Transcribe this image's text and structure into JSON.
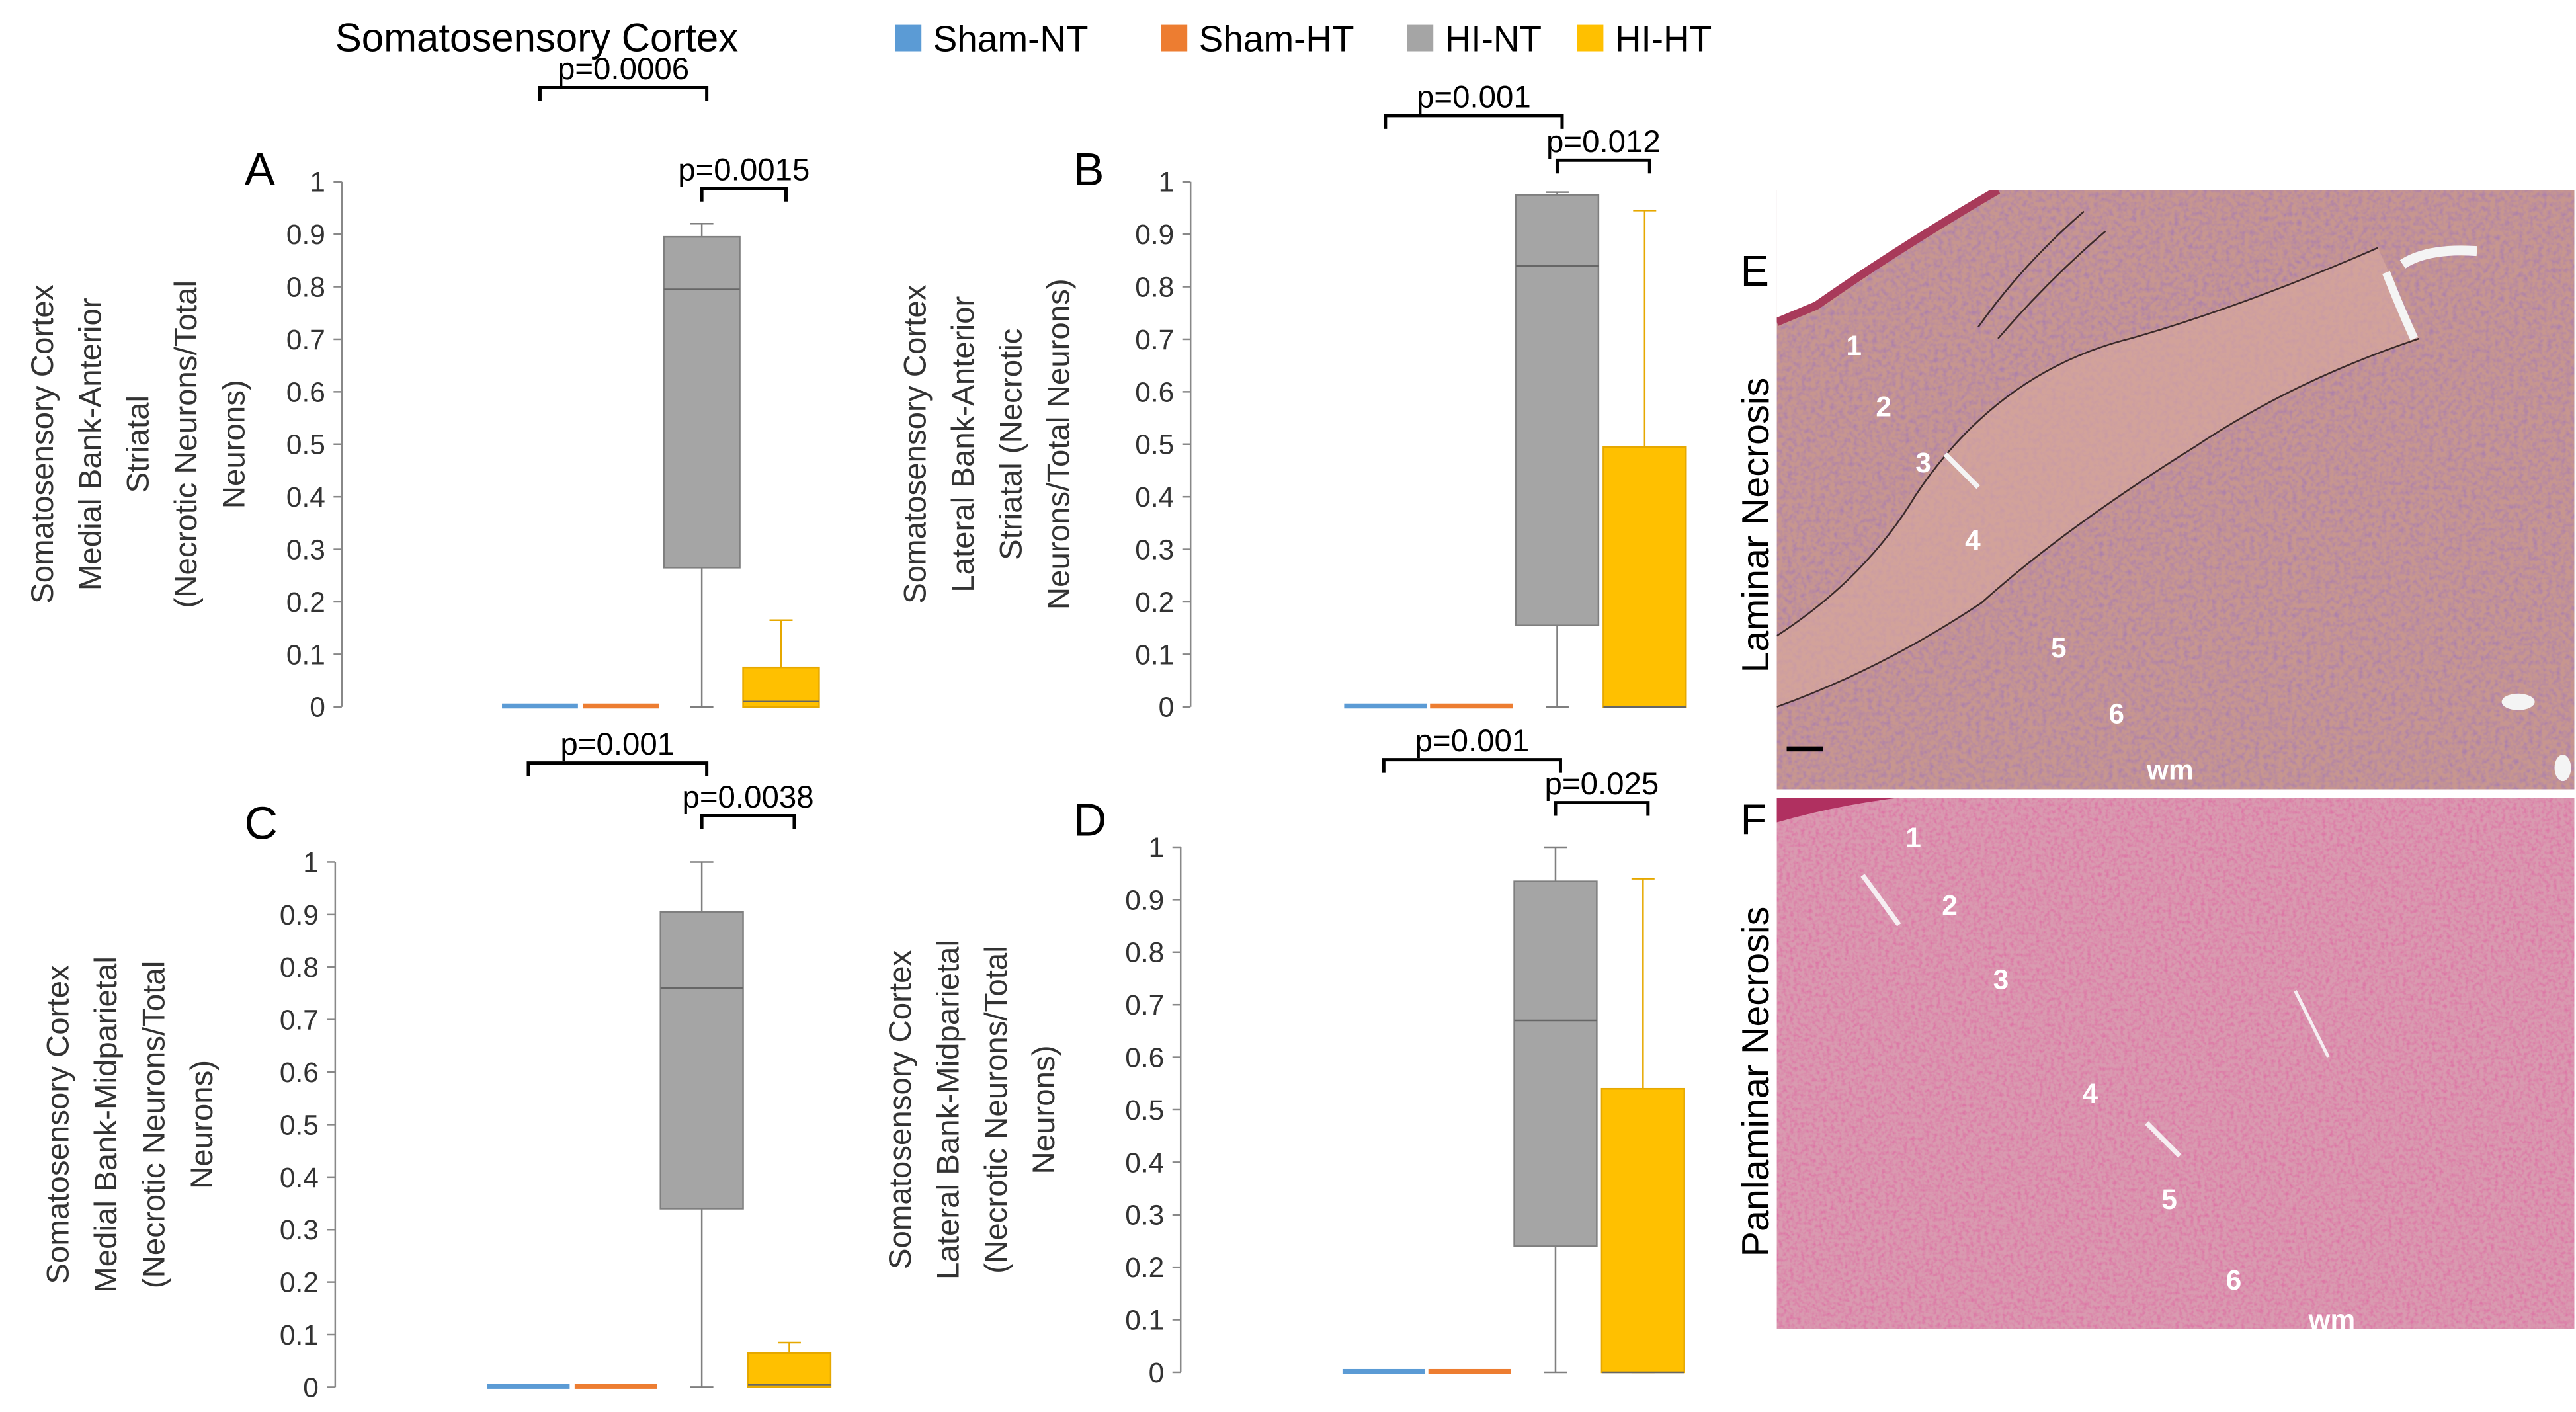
{
  "title": "Somatosensory Cortex",
  "legend": [
    {
      "label": "Sham-NT",
      "color": "#5B9BD5"
    },
    {
      "label": "Sham-HT",
      "color": "#ED7D31"
    },
    {
      "label": "HI-NT",
      "color": "#A5A5A5"
    },
    {
      "label": "HI-HT",
      "color": "#FFC000"
    }
  ],
  "colors": {
    "sham_nt": "#5B9BD5",
    "sham_ht": "#ED7D31",
    "hi_nt": "#A5A5A5",
    "hi_nt_edge": "#7F7F7F",
    "hi_ht": "#FFC000",
    "hi_ht_edge": "#E6A800"
  },
  "chart_data": [
    {
      "panel": "A",
      "type": "box",
      "ylabel": [
        "Somatosensory Cortex",
        "Medial Bank-Anterior",
        "Striatal",
        "(Necrotic Neurons/Total",
        "Neurons)"
      ],
      "ylim": [
        0,
        1
      ],
      "yticks": [
        "0",
        "0.1",
        "0.2",
        "0.3",
        "0.4",
        "0.5",
        "0.6",
        "0.7",
        "0.8",
        "0.9",
        "1"
      ],
      "groups": [
        {
          "name": "Sham-NT",
          "q1": 0,
          "median": 0,
          "q3": 0,
          "min": 0,
          "max": 0
        },
        {
          "name": "Sham-HT",
          "q1": 0,
          "median": 0,
          "q3": 0,
          "min": 0,
          "max": 0
        },
        {
          "name": "HI-NT",
          "q1": 0.265,
          "median": 0.795,
          "q3": 0.895,
          "min": 0,
          "max": 0.92
        },
        {
          "name": "HI-HT",
          "q1": 0.0,
          "median": 0.01,
          "q3": 0.075,
          "min": 0,
          "max": 0.165
        }
      ],
      "pvalues": [
        {
          "label": "p=0.0006",
          "from": "Sham-NT",
          "to": "HI-NT"
        },
        {
          "label": "p=0.0015",
          "from": "HI-NT",
          "to": "HI-HT"
        }
      ]
    },
    {
      "panel": "B",
      "type": "box",
      "ylabel": [
        "Somatosensory Cortex",
        "Lateral Bank-Anterior",
        "Striatal (Necrotic",
        "Neurons/Total Neurons)"
      ],
      "ylim": [
        0,
        1
      ],
      "yticks": [
        "0",
        "0.1",
        "0.2",
        "0.3",
        "0.4",
        "0.5",
        "0.6",
        "0.7",
        "0.8",
        "0.9",
        "1"
      ],
      "groups": [
        {
          "name": "Sham-NT",
          "q1": 0,
          "median": 0,
          "q3": 0,
          "min": 0,
          "max": 0
        },
        {
          "name": "Sham-HT",
          "q1": 0,
          "median": 0,
          "q3": 0,
          "min": 0,
          "max": 0
        },
        {
          "name": "HI-NT",
          "q1": 0.155,
          "median": 0.84,
          "q3": 0.975,
          "min": 0,
          "max": 0.98
        },
        {
          "name": "HI-HT",
          "q1": 0.0,
          "median": 0.0,
          "q3": 0.495,
          "min": 0,
          "max": 0.945
        }
      ],
      "pvalues": [
        {
          "label": "p=0.001",
          "from": "Sham-NT",
          "to": "HI-NT"
        },
        {
          "label": "p=0.012",
          "from": "HI-NT",
          "to": "HI-HT"
        }
      ]
    },
    {
      "panel": "C",
      "type": "box",
      "ylabel": [
        "Somatosensory Cortex",
        "Medial Bank-Midparietal",
        "(Necrotic Neurons/Total",
        "Neurons)"
      ],
      "ylim": [
        0,
        1
      ],
      "yticks": [
        "0",
        "0.1",
        "0.2",
        "0.3",
        "0.4",
        "0.5",
        "0.6",
        "0.7",
        "0.8",
        "0.9",
        "1"
      ],
      "groups": [
        {
          "name": "Sham-NT",
          "q1": 0,
          "median": 0,
          "q3": 0,
          "min": 0,
          "max": 0
        },
        {
          "name": "Sham-HT",
          "q1": 0,
          "median": 0,
          "q3": 0,
          "min": 0,
          "max": 0
        },
        {
          "name": "HI-NT",
          "q1": 0.34,
          "median": 0.76,
          "q3": 0.905,
          "min": 0,
          "max": 1.0
        },
        {
          "name": "HI-HT",
          "q1": 0.0,
          "median": 0.005,
          "q3": 0.065,
          "min": 0,
          "max": 0.085
        }
      ],
      "pvalues": [
        {
          "label": "p=0.001",
          "from": "Sham-NT",
          "to": "HI-NT"
        },
        {
          "label": "p=0.0038",
          "from": "HI-NT",
          "to": "HI-HT"
        }
      ]
    },
    {
      "panel": "D",
      "type": "box",
      "ylabel": [
        "Somatosensory Cortex",
        "Lateral Bank-Midparietal",
        "(Necrotic Neurons/Total",
        "Neurons)"
      ],
      "ylim": [
        0,
        1
      ],
      "yticks": [
        "0",
        "0.1",
        "0.2",
        "0.3",
        "0.4",
        "0.5",
        "0.6",
        "0.7",
        "0.8",
        "0.9",
        "1"
      ],
      "groups": [
        {
          "name": "Sham-NT",
          "q1": 0,
          "median": 0,
          "q3": 0,
          "min": 0,
          "max": 0.005
        },
        {
          "name": "Sham-HT",
          "q1": 0,
          "median": 0,
          "q3": 0,
          "min": 0,
          "max": 0
        },
        {
          "name": "HI-NT",
          "q1": 0.24,
          "median": 0.67,
          "q3": 0.935,
          "min": 0,
          "max": 1.0
        },
        {
          "name": "HI-HT",
          "q1": 0.0,
          "median": 0.0,
          "q3": 0.54,
          "min": 0,
          "max": 0.94
        }
      ],
      "pvalues": [
        {
          "label": "p=0.001",
          "from": "Sham-NT",
          "to": "HI-NT"
        },
        {
          "label": "p=0.025",
          "from": "HI-NT",
          "to": "HI-HT"
        }
      ]
    }
  ],
  "micrographs": [
    {
      "panel": "E",
      "side_label": "Laminar Necrosis",
      "layers": [
        "1",
        "2",
        "3",
        "4",
        "5",
        "6"
      ],
      "wm": "wm"
    },
    {
      "panel": "F",
      "side_label": "Panlaminar Necrosis",
      "layers": [
        "1",
        "2",
        "3",
        "4",
        "5",
        "6"
      ],
      "wm": "wm"
    }
  ]
}
